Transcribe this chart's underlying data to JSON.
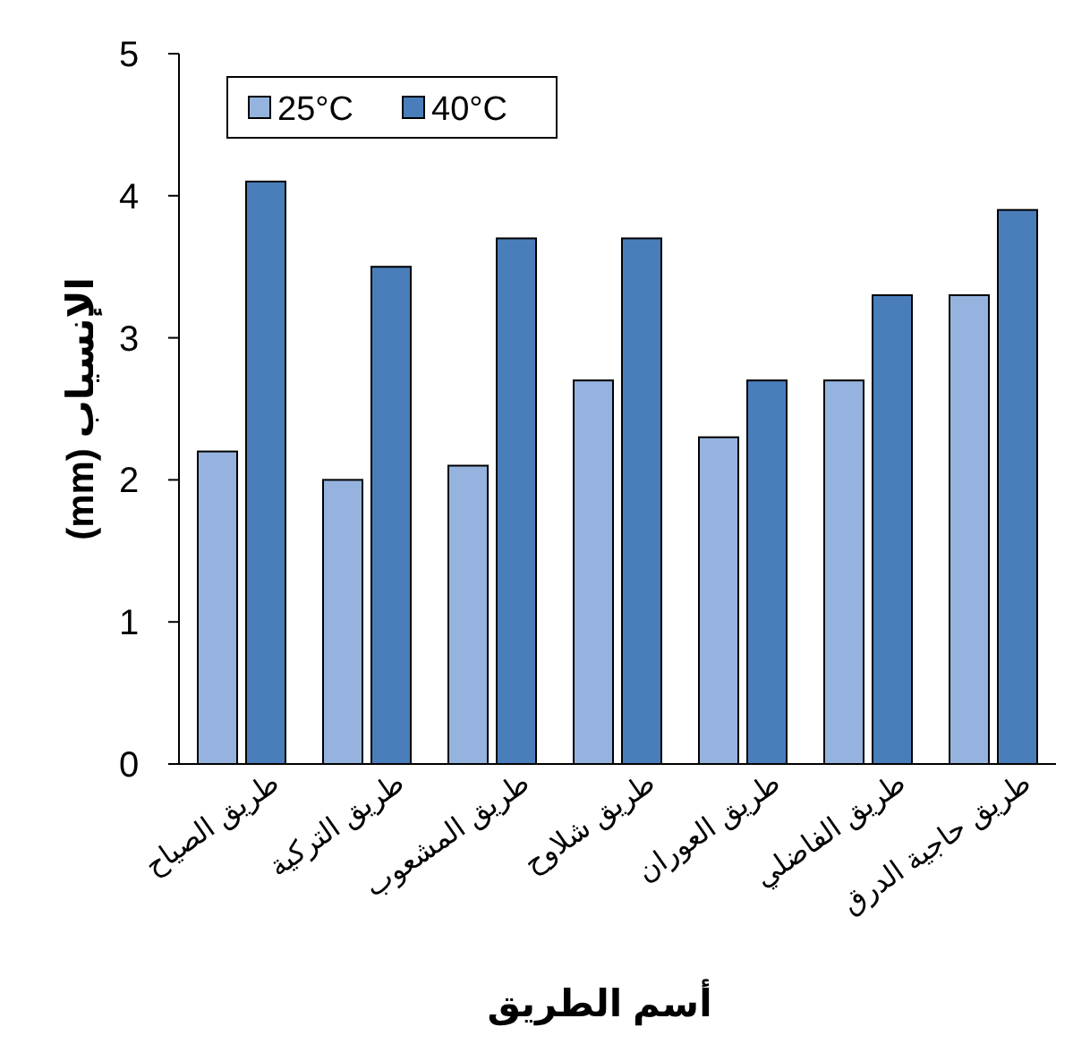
{
  "chart_data": {
    "type": "bar",
    "xlabel": "أسم الطريق",
    "ylabel": "الإنسياب (mm)",
    "categories": [
      "طريق الصياح",
      "طريق التركية",
      "طريق المشعوب",
      "طريق شلاوح",
      "طريق العوران",
      "طريق الفاضلي",
      "طريق حاجية الدرق"
    ],
    "series": [
      {
        "name": "25°C",
        "color": "#95b3de",
        "values": [
          2.2,
          2.0,
          2.1,
          2.7,
          2.3,
          2.7,
          3.3
        ]
      },
      {
        "name": "40°C",
        "color": "#4a7ebb",
        "values": [
          4.1,
          3.5,
          3.7,
          3.7,
          2.7,
          3.3,
          3.9
        ]
      }
    ],
    "ylim": [
      0,
      5
    ],
    "yticks": [
      0,
      1,
      2,
      3,
      4,
      5
    ],
    "grid": false,
    "legend": "top left"
  }
}
